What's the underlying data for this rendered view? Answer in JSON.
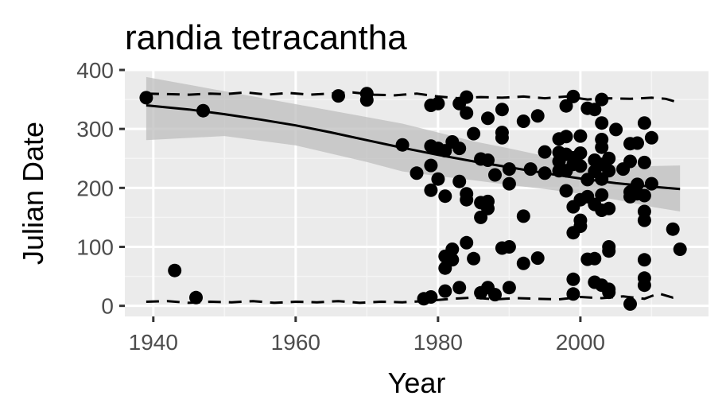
{
  "chart_data": {
    "type": "scatter",
    "title": "randia tetracantha",
    "xlabel": "Year",
    "ylabel": "Julian Date",
    "xlim": [
      1936,
      2018
    ],
    "ylim": [
      -18,
      400
    ],
    "x_ticks": [
      1940,
      1960,
      1980,
      2000
    ],
    "y_ticks": [
      0,
      100,
      200,
      300,
      400
    ],
    "x_tick_labels": [
      "1940",
      "1960",
      "1980",
      "2000"
    ],
    "y_tick_labels": [
      "0",
      "100",
      "200",
      "300",
      "400"
    ],
    "grid": true,
    "legend": "none",
    "colors": {
      "panel_background": "#ebebeb",
      "grid_major": "#ffffff",
      "grid_minor": "#f5f5f5",
      "points": "#000000",
      "trend_line": "#000000",
      "confidence_band": "#bebebe",
      "tick_label": "#4d4d4d"
    },
    "points": [
      [
        1939,
        353
      ],
      [
        1943,
        60
      ],
      [
        1946,
        14
      ],
      [
        1947,
        331
      ],
      [
        1966,
        356
      ],
      [
        1970,
        360
      ],
      [
        1970,
        349
      ],
      [
        1975,
        273
      ],
      [
        1977,
        225
      ],
      [
        1978,
        12
      ],
      [
        1979,
        15
      ],
      [
        1979,
        196
      ],
      [
        1979,
        238
      ],
      [
        1979,
        271
      ],
      [
        1979,
        340
      ],
      [
        1980,
        343
      ],
      [
        1980,
        267
      ],
      [
        1980,
        215
      ],
      [
        1981,
        186
      ],
      [
        1981,
        263
      ],
      [
        1981,
        25
      ],
      [
        1981,
        64
      ],
      [
        1981,
        84
      ],
      [
        1982,
        96
      ],
      [
        1982,
        78
      ],
      [
        1982,
        278
      ],
      [
        1983,
        267
      ],
      [
        1983,
        211
      ],
      [
        1983,
        343
      ],
      [
        1983,
        31
      ],
      [
        1984,
        354
      ],
      [
        1984,
        327
      ],
      [
        1984,
        107
      ],
      [
        1984,
        190
      ],
      [
        1984,
        180
      ],
      [
        1985,
        292
      ],
      [
        1985,
        80
      ],
      [
        1986,
        249
      ],
      [
        1986,
        150
      ],
      [
        1986,
        175
      ],
      [
        1986,
        22
      ],
      [
        1987,
        31
      ],
      [
        1987,
        165
      ],
      [
        1987,
        177
      ],
      [
        1987,
        247
      ],
      [
        1987,
        318
      ],
      [
        1988,
        19
      ],
      [
        1988,
        222
      ],
      [
        1989,
        333
      ],
      [
        1989,
        294
      ],
      [
        1989,
        285
      ],
      [
        1989,
        98
      ],
      [
        1990,
        100
      ],
      [
        1990,
        207
      ],
      [
        1990,
        232
      ],
      [
        1990,
        31
      ],
      [
        1992,
        313
      ],
      [
        1992,
        152
      ],
      [
        1992,
        72
      ],
      [
        1993,
        232
      ],
      [
        1994,
        322
      ],
      [
        1994,
        81
      ],
      [
        1995,
        225
      ],
      [
        1995,
        261
      ],
      [
        1997,
        229
      ],
      [
        1997,
        283
      ],
      [
        1997,
        260
      ],
      [
        1997,
        245
      ],
      [
        1998,
        339
      ],
      [
        1998,
        287
      ],
      [
        1998,
        257
      ],
      [
        1998,
        229
      ],
      [
        1998,
        195
      ],
      [
        1999,
        355
      ],
      [
        1999,
        251
      ],
      [
        1999,
        240
      ],
      [
        1999,
        124
      ],
      [
        1999,
        45
      ],
      [
        1999,
        20
      ],
      [
        1999,
        168
      ],
      [
        2000,
        180
      ],
      [
        2000,
        288
      ],
      [
        2000,
        237
      ],
      [
        2000,
        145
      ],
      [
        2000,
        135
      ],
      [
        2000,
        259
      ],
      [
        2001,
        335
      ],
      [
        2001,
        79
      ],
      [
        2001,
        214
      ],
      [
        2001,
        185
      ],
      [
        2002,
        333
      ],
      [
        2002,
        80
      ],
      [
        2002,
        40
      ],
      [
        2002,
        172
      ],
      [
        2002,
        247
      ],
      [
        2002,
        228
      ],
      [
        2003,
        350
      ],
      [
        2003,
        310
      ],
      [
        2003,
        282
      ],
      [
        2003,
        269
      ],
      [
        2003,
        240
      ],
      [
        2003,
        215
      ],
      [
        2003,
        188
      ],
      [
        2003,
        162
      ],
      [
        2003,
        35
      ],
      [
        2004,
        250
      ],
      [
        2004,
        229
      ],
      [
        2004,
        165
      ],
      [
        2004,
        100
      ],
      [
        2004,
        93
      ],
      [
        2004,
        23
      ],
      [
        2004,
        28
      ],
      [
        2005,
        299
      ],
      [
        2006,
        232
      ],
      [
        2007,
        275
      ],
      [
        2007,
        245
      ],
      [
        2007,
        3
      ],
      [
        2007,
        193
      ],
      [
        2007,
        185
      ],
      [
        2008,
        276
      ],
      [
        2008,
        206
      ],
      [
        2008,
        190
      ],
      [
        2009,
        310
      ],
      [
        2009,
        243
      ],
      [
        2009,
        187
      ],
      [
        2009,
        160
      ],
      [
        2009,
        145
      ],
      [
        2009,
        78
      ],
      [
        2009,
        47
      ],
      [
        2009,
        35
      ],
      [
        2010,
        285
      ],
      [
        2010,
        207
      ],
      [
        2013,
        130
      ],
      [
        2014,
        96
      ]
    ],
    "trend_line": [
      [
        1939,
        340
      ],
      [
        1945,
        333
      ],
      [
        1950,
        325
      ],
      [
        1955,
        316
      ],
      [
        1960,
        306
      ],
      [
        1965,
        294
      ],
      [
        1970,
        281
      ],
      [
        1975,
        268
      ],
      [
        1980,
        256
      ],
      [
        1985,
        245
      ],
      [
        1990,
        235
      ],
      [
        1995,
        225
      ],
      [
        2000,
        216
      ],
      [
        2005,
        208
      ],
      [
        2010,
        202
      ],
      [
        2014,
        198
      ]
    ],
    "confidence_upper": [
      [
        1939,
        388
      ],
      [
        1950,
        364
      ],
      [
        1960,
        342
      ],
      [
        1970,
        320
      ],
      [
        1975,
        309
      ],
      [
        1980,
        294
      ],
      [
        1985,
        279
      ],
      [
        1990,
        267
      ],
      [
        1995,
        254
      ],
      [
        2000,
        243
      ],
      [
        2005,
        238
      ],
      [
        2010,
        237
      ],
      [
        2014,
        238
      ]
    ],
    "confidence_lower": [
      [
        1939,
        281
      ],
      [
        1950,
        288
      ],
      [
        1960,
        272
      ],
      [
        1970,
        244
      ],
      [
        1975,
        228
      ],
      [
        1980,
        220
      ],
      [
        1985,
        213
      ],
      [
        1990,
        205
      ],
      [
        1995,
        198
      ],
      [
        2000,
        190
      ],
      [
        2005,
        180
      ],
      [
        2010,
        168
      ],
      [
        2014,
        160
      ]
    ],
    "upper_dashed": [
      [
        1939,
        360
      ],
      [
        1942,
        359
      ],
      [
        1945,
        358
      ],
      [
        1948,
        360
      ],
      [
        1950,
        359
      ],
      [
        1953,
        362
      ],
      [
        1956,
        358
      ],
      [
        1959,
        361
      ],
      [
        1962,
        358
      ],
      [
        1965,
        360
      ],
      [
        1968,
        362
      ],
      [
        1971,
        358
      ],
      [
        1974,
        357
      ],
      [
        1977,
        360
      ],
      [
        1980,
        355
      ],
      [
        1983,
        352
      ],
      [
        1986,
        354
      ],
      [
        1989,
        353
      ],
      [
        1992,
        355
      ],
      [
        1995,
        352
      ],
      [
        1998,
        355
      ],
      [
        2001,
        350
      ],
      [
        2004,
        352
      ],
      [
        2007,
        351
      ],
      [
        2010,
        353
      ],
      [
        2012,
        351
      ],
      [
        2014,
        344
      ]
    ],
    "lower_dashed": [
      [
        1939,
        7
      ],
      [
        1942,
        8
      ],
      [
        1945,
        5
      ],
      [
        1948,
        7
      ],
      [
        1951,
        6
      ],
      [
        1954,
        8
      ],
      [
        1957,
        5
      ],
      [
        1960,
        7
      ],
      [
        1963,
        6
      ],
      [
        1966,
        8
      ],
      [
        1969,
        5
      ],
      [
        1972,
        7
      ],
      [
        1975,
        6
      ],
      [
        1978,
        8
      ],
      [
        1980,
        10
      ],
      [
        1982,
        12
      ],
      [
        1985,
        14
      ],
      [
        1988,
        11
      ],
      [
        1991,
        13
      ],
      [
        1994,
        12
      ],
      [
        1997,
        11
      ],
      [
        2000,
        15
      ],
      [
        2003,
        13
      ],
      [
        2006,
        16
      ],
      [
        2009,
        12
      ],
      [
        2011,
        21
      ],
      [
        2013,
        14
      ],
      [
        2014,
        15
      ]
    ]
  }
}
